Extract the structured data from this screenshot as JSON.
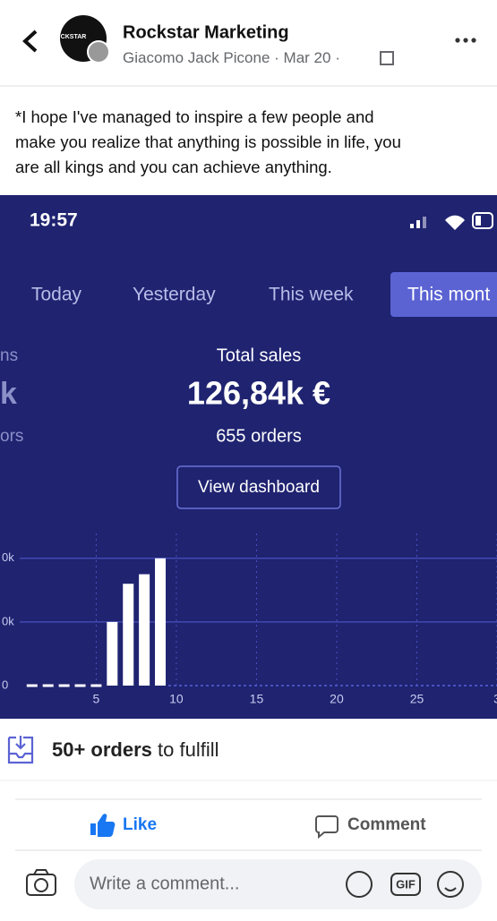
{
  "header": {
    "page_name": "Rockstar Marketing",
    "author": "Giacomo Jack Picone",
    "separator": "·",
    "date": "Mar 20",
    "avatar_text": "CKSTAR"
  },
  "post_lines": [
    "*I hope I've managed to inspire a few people and",
    "make you realize that anything is possible in life, you",
    "are all kings and you can achieve anything."
  ],
  "screenshot": {
    "time": "19:57",
    "tabs": [
      "Today",
      "Yesterday",
      "This week",
      "This mont"
    ],
    "left_partial": [
      "ns",
      "k",
      "ors"
    ],
    "total_label": "Total sales",
    "total_value": "126,84k €",
    "orders": "655 orders",
    "button": "View dashboard"
  },
  "chart_data": {
    "type": "bar",
    "x": [
      1,
      2,
      3,
      4,
      5,
      6,
      7,
      8,
      9
    ],
    "values": [
      0,
      0,
      0,
      0,
      0,
      20000,
      32000,
      35000,
      40000
    ],
    "color": "#ffffff",
    "xlim": [
      -1,
      30
    ],
    "ylim": [
      0,
      45000
    ],
    "xticks": [
      5,
      10,
      15,
      20,
      25,
      {
        "value": 30,
        "label": "3"
      }
    ],
    "yticks": [
      {
        "value": 0,
        "label": "0"
      },
      {
        "value": 20000,
        "label": "0k"
      },
      {
        "value": 40000,
        "label": "0k"
      }
    ],
    "grid": true
  },
  "fulfill": {
    "count": "50+ orders",
    "rest": " to fulfill"
  },
  "actions": {
    "like": "Like",
    "comment": "Comment"
  },
  "comment_box": {
    "placeholder": "Write a comment...",
    "gif": "GIF"
  }
}
